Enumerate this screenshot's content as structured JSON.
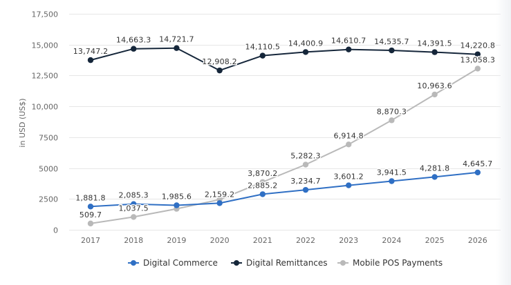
{
  "chart_data": {
    "type": "line",
    "title": "",
    "xlabel": "",
    "ylabel": "in USD (US$)",
    "x": [
      "2017",
      "2018",
      "2019",
      "2020",
      "2021",
      "2022",
      "2023",
      "2024",
      "2025",
      "2026"
    ],
    "ylim": [
      0,
      17500
    ],
    "yticks": [
      0,
      2500,
      5000,
      7500,
      10000,
      12500,
      15000,
      17500
    ],
    "ytick_labels": [
      "0",
      "2500",
      "5000",
      "7500",
      "10,000",
      "12,500",
      "15,000",
      "17,500"
    ],
    "grid": true,
    "legend_position": "bottom-center",
    "series": [
      {
        "name": "Digital Commerce",
        "color": "#2f6fc4",
        "values": [
          1881.8,
          2085.3,
          1985.6,
          2159.2,
          2885.2,
          3234.7,
          3601.2,
          3941.5,
          4281.8,
          4645.7
        ],
        "labels": [
          "1,881.8",
          "2,085.3",
          "1,985.6",
          "2,159.2",
          "2,885.2",
          "3,234.7",
          "3,601.2",
          "3,941.5",
          "4,281.8",
          "4,645.7"
        ]
      },
      {
        "name": "Digital Remittances",
        "color": "#15263a",
        "values": [
          13747.2,
          14663.3,
          14721.7,
          12908.2,
          14110.5,
          14400.9,
          14610.7,
          14535.7,
          14391.5,
          14220.8
        ],
        "labels": [
          "13,747.2",
          "14,663.3",
          "14,721.7",
          "12,908.2",
          "14,110.5",
          "14,400.9",
          "14,610.7",
          "14,535.7",
          "14,391.5",
          "14,220.8"
        ]
      },
      {
        "name": "Mobile POS Payments",
        "color": "#b9b9b9",
        "values": [
          509.7,
          1037.5,
          1700,
          2450,
          3870.2,
          5282.3,
          6914.8,
          8870.3,
          10963.6,
          13058.3
        ],
        "labels": [
          "509.7",
          "1,037.5",
          "",
          "",
          "3,870.2",
          "5,282.3",
          "6,914.8",
          "8,870.3",
          "10,963.6",
          "13,058.3"
        ]
      }
    ]
  }
}
